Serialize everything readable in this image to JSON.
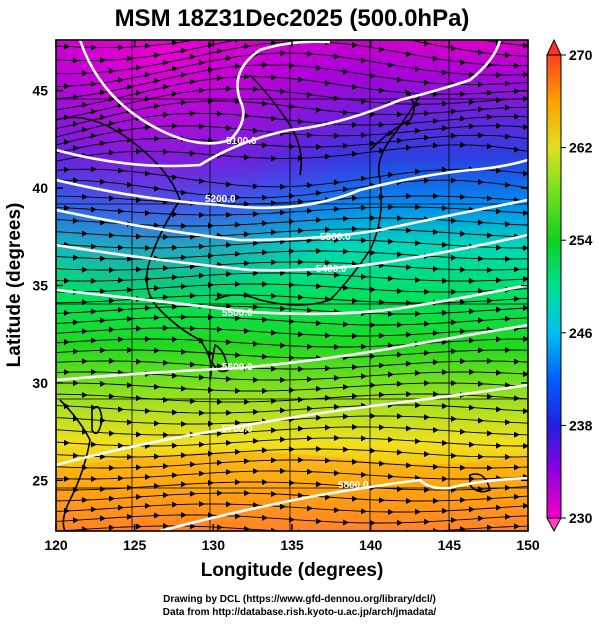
{
  "title": "MSM 18Z31Dec2025 (500.0hPa)",
  "xlabel": "Longitude (degrees)",
  "ylabel": "Latitude  (degrees)",
  "x_ticks": [
    120,
    125,
    130,
    135,
    140,
    145,
    150
  ],
  "y_ticks": [
    25,
    30,
    35,
    40,
    45
  ],
  "xlim": [
    120,
    150
  ],
  "ylim": [
    22.4,
    47.6
  ],
  "colorbar": {
    "ticks": [
      230,
      238,
      246,
      254,
      262,
      270
    ],
    "range": [
      230,
      270
    ],
    "stops": [
      "#d900cc",
      "#9a00e0",
      "#3020e0",
      "#0070ff",
      "#00c8e0",
      "#00e080",
      "#20d020",
      "#80e020",
      "#e0e020",
      "#ffb000",
      "#ff7000",
      "#ff3020"
    ]
  },
  "contours": [
    {
      "label": "5100.0"
    },
    {
      "label": "5200.0"
    },
    {
      "label": "5300.0"
    },
    {
      "label": "5400.0"
    },
    {
      "label": "5500.0"
    },
    {
      "label": "5600.0"
    },
    {
      "label": "5700.0"
    },
    {
      "label": "5800.0"
    }
  ],
  "credits": {
    "line1": "Drawing by DCL (https://www.gfd-dennou.org/library/dcl/)",
    "line2": "Data from http://database.rish.kyoto-u.ac.jp/arch/jmadata/"
  }
}
